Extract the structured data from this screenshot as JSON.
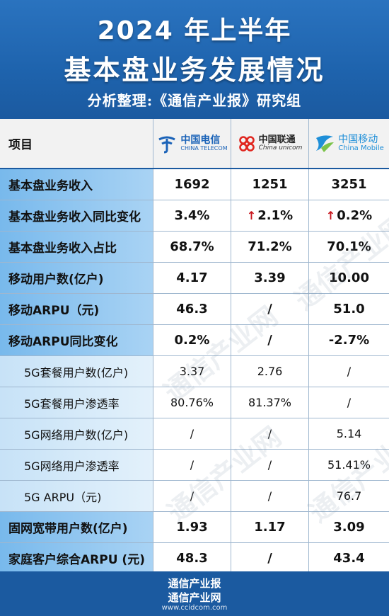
{
  "header": {
    "title_line1": "2024 年上半年",
    "title_line2": "基本盘业务发展情况",
    "subtitle": "分析整理:《通信产业报》研究组"
  },
  "table": {
    "header_label": "项目",
    "operators": [
      {
        "cn": "中国电信",
        "en": "CHINA TELECOM",
        "logo_icon": "china-telecom-logo-icon",
        "color": "#1b63b8"
      },
      {
        "cn": "中国联通",
        "en": "China unicom",
        "logo_icon": "china-unicom-logo-icon",
        "color": "#e0261f"
      },
      {
        "cn": "中国移动",
        "en": "China Mobile",
        "logo_icon": "china-mobile-logo-icon",
        "color": "#1f8fd8"
      }
    ],
    "rows": [
      {
        "label": "基本盘业务收入",
        "type": "main",
        "values": [
          "1692",
          "1251",
          "3251"
        ],
        "up": [
          false,
          false,
          false
        ]
      },
      {
        "label": "基本盘业务收入同比变化",
        "type": "main",
        "values": [
          "3.4%",
          "2.1%",
          "0.2%"
        ],
        "up": [
          false,
          true,
          true
        ]
      },
      {
        "label": "基本盘业务收入占比",
        "type": "main",
        "values": [
          "68.7%",
          "71.2%",
          "70.1%"
        ],
        "up": [
          false,
          false,
          false
        ]
      },
      {
        "label": "移动用户数(亿户)",
        "type": "main",
        "values": [
          "4.17",
          "3.39",
          "10.00"
        ],
        "up": [
          false,
          false,
          false
        ]
      },
      {
        "label": "移动ARPU（元)",
        "type": "main",
        "values": [
          "46.3",
          "/",
          "51.0"
        ],
        "up": [
          false,
          false,
          false
        ]
      },
      {
        "label": "移动ARPU同比变化",
        "type": "main",
        "values": [
          "0.2%",
          "/",
          "-2.7%"
        ],
        "up": [
          false,
          false,
          false
        ]
      },
      {
        "label": "5G套餐用户数(亿户)",
        "type": "sub",
        "values": [
          "3.37",
          "2.76",
          "/"
        ],
        "up": [
          false,
          false,
          false
        ]
      },
      {
        "label": "5G套餐用户渗透率",
        "type": "sub",
        "values": [
          "80.76%",
          "81.37%",
          "/"
        ],
        "up": [
          false,
          false,
          false
        ]
      },
      {
        "label": "5G网络用户数(亿户)",
        "type": "sub",
        "values": [
          "/",
          "/",
          "5.14"
        ],
        "up": [
          false,
          false,
          false
        ]
      },
      {
        "label": "5G网络用户渗透率",
        "type": "sub",
        "values": [
          "/",
          "/",
          "51.41%"
        ],
        "up": [
          false,
          false,
          false
        ]
      },
      {
        "label": "5G ARPU（元)",
        "type": "sub",
        "values": [
          "/",
          "/",
          "76.7"
        ],
        "up": [
          false,
          false,
          false
        ]
      },
      {
        "label": "固网宽带用户数(亿户)",
        "type": "main",
        "values": [
          "1.93",
          "1.17",
          "3.09"
        ],
        "up": [
          false,
          false,
          false
        ]
      },
      {
        "label": "家庭客户综合ARPU (元)",
        "type": "main",
        "values": [
          "48.3",
          "/",
          "43.4"
        ],
        "up": [
          false,
          false,
          false
        ]
      }
    ]
  },
  "footer": {
    "line1": "通信产业报",
    "line2": "通信产业网",
    "url": "www.ccidcom.com"
  },
  "watermark": "通信产业网",
  "colors": {
    "brand_blue": "#1b5aa0",
    "main_label_bg": "#78b9ec",
    "sub_label_bg": "#c7e2f7",
    "up_arrow": "#c8151d"
  }
}
